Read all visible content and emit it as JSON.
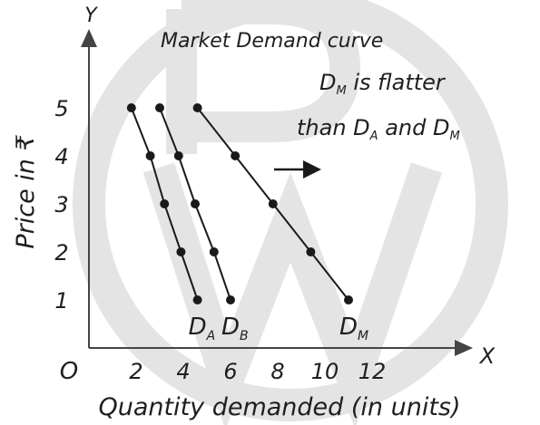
{
  "chart_data": {
    "type": "line",
    "title": "Market Demand curve",
    "annotation": {
      "line1_main": "D",
      "line1_sub": "M",
      "line1_rest": " is flatter",
      "line2_a": "than D",
      "line2_a_sub": "A",
      "line2_mid": " and D",
      "line2_b_sub": "M"
    },
    "xlabel": "Quantity demanded (in units)",
    "ylabel": "Price in ₹",
    "x_axis_letter": "X",
    "y_axis_letter": "Y",
    "origin_label": "O",
    "xlim": [
      0,
      13
    ],
    "ylim": [
      0,
      6
    ],
    "x_ticks": [
      2,
      4,
      6,
      8,
      10,
      12
    ],
    "x_tick_labels": [
      "2",
      "4",
      "6",
      "8",
      "10",
      "12"
    ],
    "y_ticks": [
      1,
      2,
      3,
      4,
      5
    ],
    "y_tick_labels": [
      "1",
      "2",
      "3",
      "4",
      "5"
    ],
    "series": [
      {
        "label_main": "D",
        "label_sub": "A",
        "color": "#1a1a1a",
        "x": [
          1.8,
          2.6,
          3.2,
          3.9,
          4.6
        ],
        "y": [
          5,
          4,
          3,
          2,
          1
        ]
      },
      {
        "label_main": "D",
        "label_sub": "B",
        "color": "#1a1a1a",
        "x": [
          3.0,
          3.8,
          4.5,
          5.3,
          6.0
        ],
        "y": [
          5,
          4,
          3,
          2,
          1
        ]
      },
      {
        "label_main": "D",
        "label_sub": "M",
        "color": "#1a1a1a",
        "x": [
          4.6,
          6.2,
          7.8,
          9.4,
          11.0
        ],
        "y": [
          5,
          4,
          3,
          2,
          1
        ]
      }
    ],
    "arrow_direction": "right",
    "colors": {
      "axis": "#444444",
      "line": "#1a1a1a",
      "watermark": "#e6e6e6"
    }
  }
}
